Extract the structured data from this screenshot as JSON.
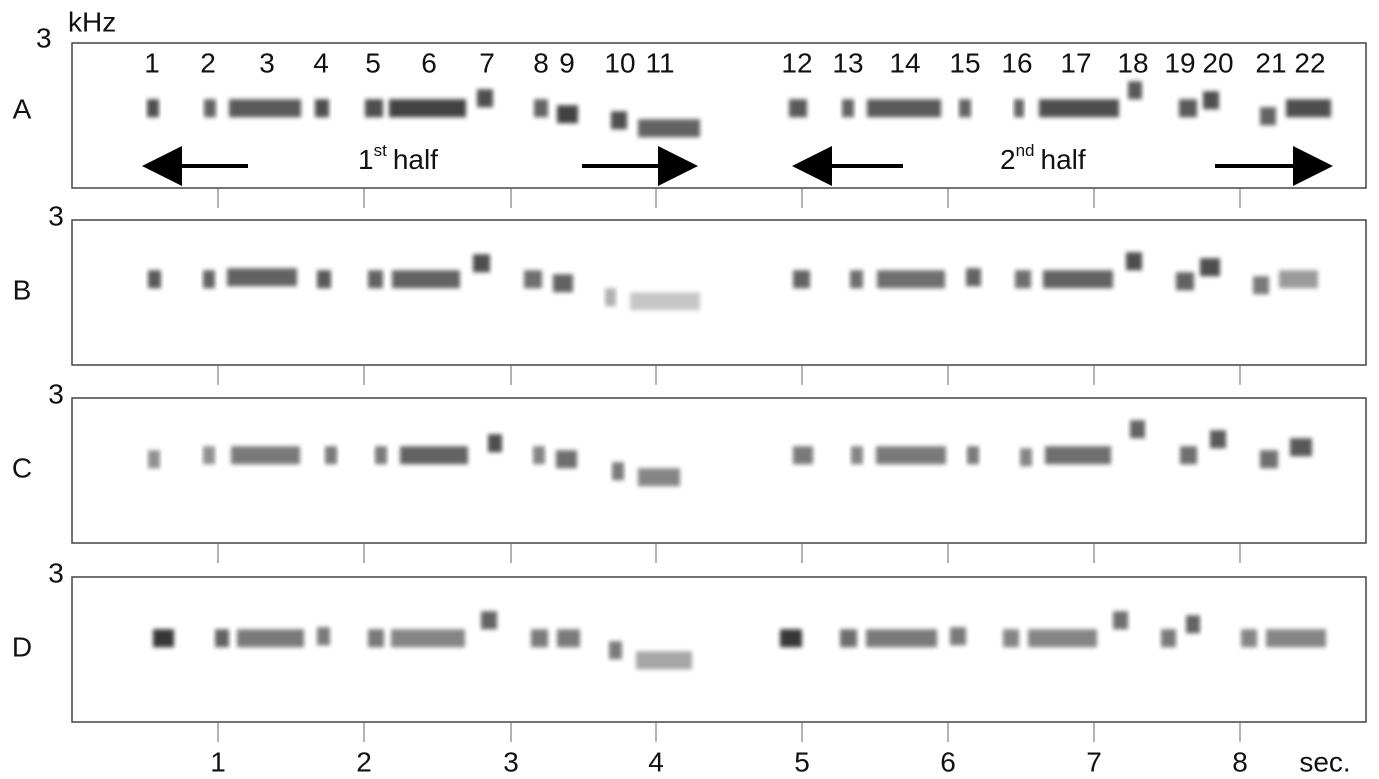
{
  "axis": {
    "frequency_max": "3",
    "frequency_unit": "kHz",
    "time_ticks": [
      "1",
      "2",
      "3",
      "4",
      "5",
      "6",
      "7",
      "8"
    ],
    "time_unit": "sec."
  },
  "panels": [
    {
      "label": "A"
    },
    {
      "label": "B"
    },
    {
      "label": "C"
    },
    {
      "label": "D"
    }
  ],
  "note_numbers": [
    "1",
    "2",
    "3",
    "4",
    "5",
    "6",
    "7",
    "8",
    "9",
    "10",
    "11",
    "12",
    "13",
    "14",
    "15",
    "16",
    "17",
    "18",
    "19",
    "20",
    "21",
    "22"
  ],
  "halves": [
    {
      "ordinal": "1",
      "suffix": "st",
      "text": "half"
    },
    {
      "ordinal": "2",
      "suffix": "nd",
      "text": "half"
    }
  ]
}
